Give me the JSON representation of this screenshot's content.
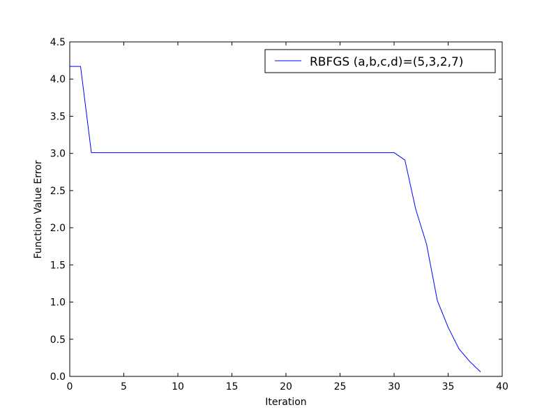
{
  "chart_data": {
    "type": "line",
    "title": "",
    "xlabel": "Iteration",
    "ylabel": "Function Value Error",
    "xlim": [
      0,
      40
    ],
    "ylim": [
      0,
      4.5
    ],
    "xticks": [
      0,
      5,
      10,
      15,
      20,
      25,
      30,
      35,
      40
    ],
    "xtick_labels": [
      "0",
      "5",
      "10",
      "15",
      "20",
      "25",
      "30",
      "35",
      "40"
    ],
    "yticks": [
      0,
      0.5,
      1.0,
      1.5,
      2.0,
      2.5,
      3.0,
      3.5,
      4.0,
      4.5
    ],
    "ytick_labels": [
      "0.0",
      "0.5",
      "1.0",
      "1.5",
      "2.0",
      "2.5",
      "3.0",
      "3.5",
      "4.0",
      "4.5"
    ],
    "grid": false,
    "legend_position": "top-right",
    "series": [
      {
        "name": "RBFGS (a,b,c,d)=(5,3,2,7)",
        "color": "#0000ff",
        "x": [
          0,
          1,
          2,
          3,
          4,
          5,
          6,
          7,
          8,
          9,
          10,
          11,
          12,
          13,
          14,
          15,
          16,
          17,
          18,
          19,
          20,
          21,
          22,
          23,
          24,
          25,
          26,
          27,
          28,
          29,
          30,
          31,
          32,
          33,
          34,
          35,
          36,
          37,
          38
        ],
        "y": [
          4.17,
          4.17,
          3.01,
          3.01,
          3.01,
          3.01,
          3.01,
          3.01,
          3.01,
          3.01,
          3.01,
          3.01,
          3.01,
          3.01,
          3.01,
          3.01,
          3.01,
          3.01,
          3.01,
          3.01,
          3.01,
          3.01,
          3.01,
          3.01,
          3.01,
          3.01,
          3.01,
          3.01,
          3.01,
          3.01,
          3.01,
          2.91,
          2.25,
          1.78,
          1.02,
          0.66,
          0.37,
          0.2,
          0.06
        ]
      }
    ]
  }
}
